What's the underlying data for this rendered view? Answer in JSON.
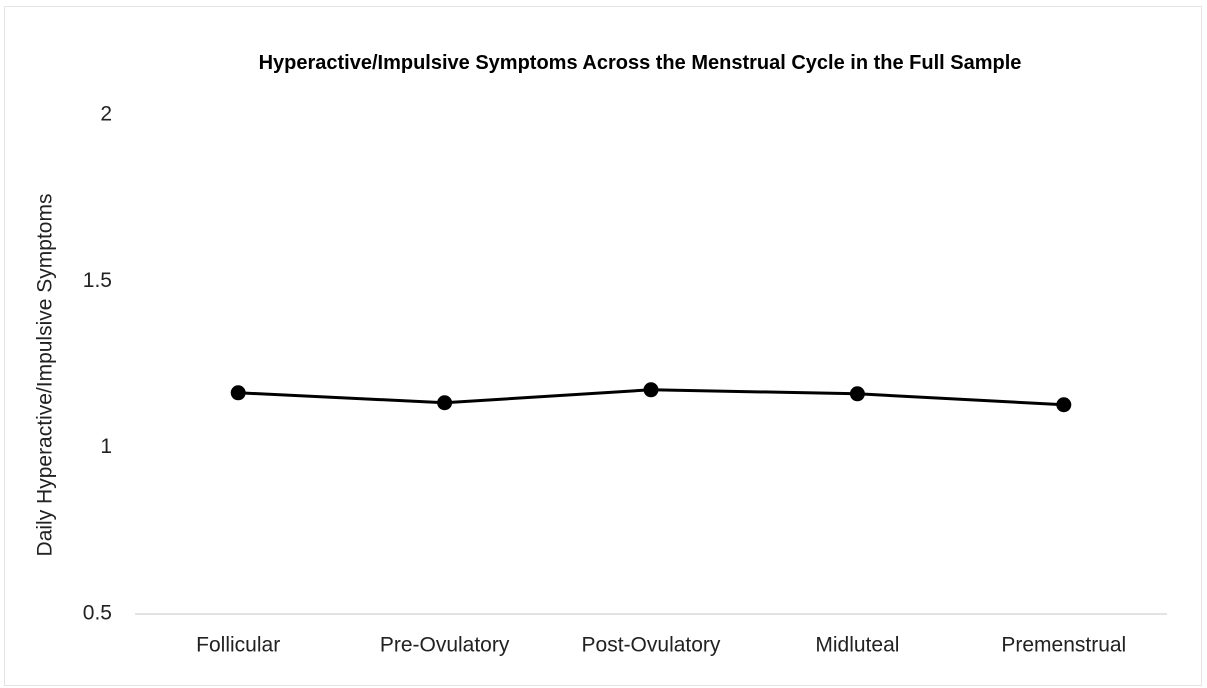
{
  "chart_data": {
    "type": "line",
    "title": "Hyperactive/Impulsive Symptoms Across the Menstrual Cycle in the Full Sample",
    "y_label": "Daily Hyperactive/Impulsive Symptoms",
    "categories": [
      "Follicular",
      "Pre-Ovulatory",
      "Post-Ovulatory",
      "Midluteal",
      "Premenstrual"
    ],
    "series": [
      {
        "name": "Full Sample",
        "color": "#000000",
        "values": [
          1.165,
          1.135,
          1.174,
          1.162,
          1.129
        ]
      }
    ],
    "ylim": [
      0.5,
      2
    ],
    "yticks": [
      0.5,
      1,
      1.5,
      2
    ],
    "grid": false
  }
}
